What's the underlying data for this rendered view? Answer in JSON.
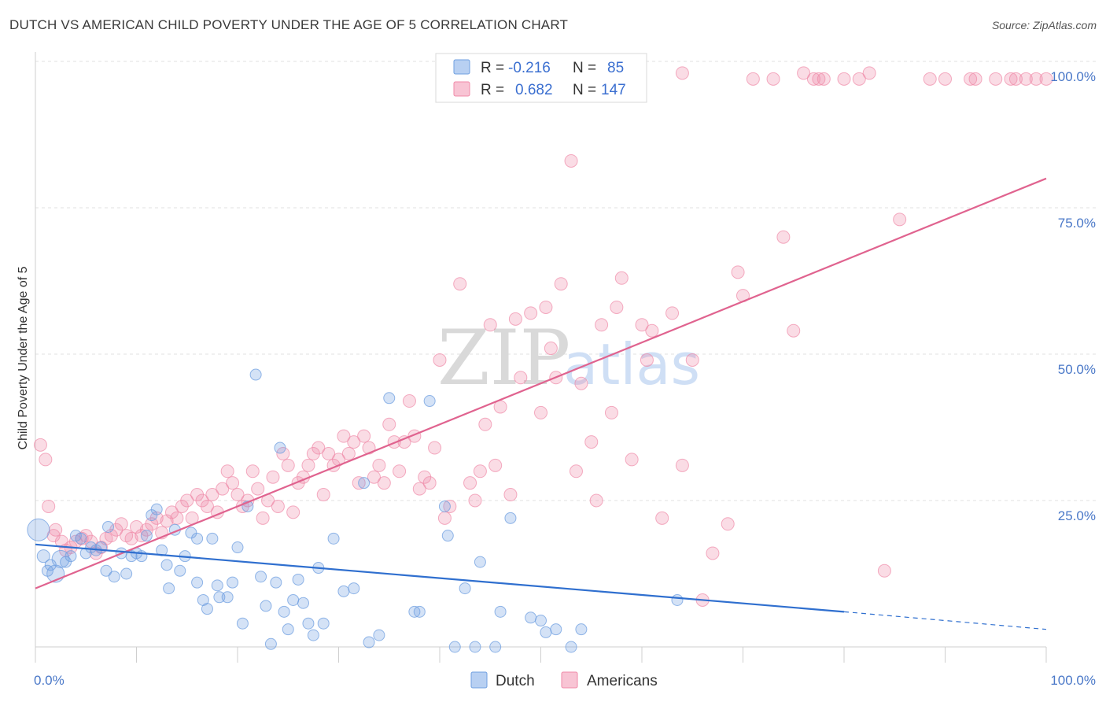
{
  "title": "DUTCH VS AMERICAN CHILD POVERTY UNDER THE AGE OF 5 CORRELATION CHART",
  "source": "Source: ZipAtlas.com",
  "watermark": {
    "zip": "ZIP",
    "atlas": "atlas"
  },
  "colors": {
    "dutch": "#6f9fe0",
    "americans": "#f08aa8",
    "dutch_line": "#2f6fcf",
    "americans_line": "#e0638f"
  },
  "legend_top": {
    "rows": [
      {
        "series": "Dutch",
        "r_label": "R =",
        "r_value": "-0.216",
        "n_label": "N =",
        "n_value": "85"
      },
      {
        "series": "Americans",
        "r_label": "R =",
        "r_value": "0.682",
        "n_label": "N =",
        "n_value": "147"
      }
    ]
  },
  "legend_bottom": [
    "Dutch",
    "Americans"
  ],
  "chart_data": {
    "type": "scatter",
    "ylabel": "Child Poverty Under the Age of 5",
    "xlim": [
      0,
      100
    ],
    "ylim": [
      0,
      100
    ],
    "x_tick_labels": [
      "0.0%",
      "100.0%"
    ],
    "y_tick_values": [
      25,
      50,
      75,
      100
    ],
    "y_tick_labels": [
      "25.0%",
      "50.0%",
      "75.0%",
      "100.0%"
    ],
    "grid": true,
    "legend_placement": "top-center",
    "series": [
      {
        "name": "Dutch",
        "trend": {
          "x0": 0,
          "y0": 17.5,
          "x1": 80,
          "y1": 6,
          "dashed_to_x": 100,
          "dashed_to_y": 3
        },
        "points": [
          [
            0.3,
            20
          ],
          [
            0.8,
            15.5
          ],
          [
            1.2,
            13
          ],
          [
            1.5,
            14
          ],
          [
            2.0,
            12.5
          ],
          [
            2.5,
            15
          ],
          [
            3.0,
            14.5
          ],
          [
            3.5,
            15.5
          ],
          [
            4.0,
            19
          ],
          [
            4.5,
            18.5
          ],
          [
            5.0,
            16
          ],
          [
            5.5,
            17
          ],
          [
            6.0,
            16.5
          ],
          [
            6.5,
            17
          ],
          [
            7.0,
            13
          ],
          [
            7.2,
            20.5
          ],
          [
            7.8,
            12
          ],
          [
            8.5,
            16
          ],
          [
            9.0,
            12.5
          ],
          [
            9.5,
            15.5
          ],
          [
            10.0,
            16
          ],
          [
            10.5,
            15.5
          ],
          [
            11.0,
            19
          ],
          [
            11.5,
            22.5
          ],
          [
            12.0,
            23.5
          ],
          [
            12.5,
            16.5
          ],
          [
            13.0,
            14
          ],
          [
            13.2,
            10
          ],
          [
            13.8,
            20
          ],
          [
            14.3,
            13
          ],
          [
            14.8,
            15.5
          ],
          [
            15.4,
            19.5
          ],
          [
            16.0,
            18.5
          ],
          [
            16.0,
            11
          ],
          [
            16.6,
            8
          ],
          [
            17.0,
            6.5
          ],
          [
            17.5,
            18.5
          ],
          [
            18.0,
            10.5
          ],
          [
            18.2,
            8.5
          ],
          [
            19.0,
            8.5
          ],
          [
            19.5,
            11
          ],
          [
            20.0,
            17
          ],
          [
            20.5,
            4
          ],
          [
            21.0,
            24
          ],
          [
            21.8,
            46.5
          ],
          [
            22.3,
            12
          ],
          [
            22.8,
            7
          ],
          [
            23.3,
            0.5
          ],
          [
            23.8,
            11
          ],
          [
            24.2,
            34
          ],
          [
            24.6,
            6
          ],
          [
            25.0,
            3
          ],
          [
            25.5,
            8
          ],
          [
            26.0,
            11.5
          ],
          [
            26.5,
            7.5
          ],
          [
            27.0,
            4
          ],
          [
            27.5,
            2
          ],
          [
            28.0,
            13.5
          ],
          [
            28.5,
            4
          ],
          [
            29.5,
            18.5
          ],
          [
            30.5,
            9.5
          ],
          [
            31.5,
            10
          ],
          [
            32.5,
            28
          ],
          [
            33.0,
            0.8
          ],
          [
            34.0,
            2
          ],
          [
            35.0,
            42.5
          ],
          [
            37.5,
            6
          ],
          [
            38.0,
            6
          ],
          [
            39.0,
            42
          ],
          [
            40.5,
            24
          ],
          [
            40.8,
            19
          ],
          [
            41.5,
            0
          ],
          [
            42.5,
            10
          ],
          [
            43.5,
            0
          ],
          [
            44.0,
            14.5
          ],
          [
            45.5,
            0
          ],
          [
            46.0,
            6
          ],
          [
            47.0,
            22
          ],
          [
            49.0,
            5
          ],
          [
            50.0,
            4.5
          ],
          [
            50.5,
            2.5
          ],
          [
            51.5,
            3
          ],
          [
            53.0,
            0
          ],
          [
            54.0,
            3
          ],
          [
            63.5,
            8
          ]
        ],
        "sizes": [
          28,
          16,
          14,
          14,
          22,
          22,
          14,
          14,
          14,
          14,
          14,
          14,
          14,
          14,
          14,
          14,
          14,
          14,
          14,
          14,
          14,
          14,
          14,
          14,
          14,
          14,
          14,
          14,
          14,
          14,
          14,
          14,
          14,
          14,
          14,
          14,
          14,
          14,
          14,
          14,
          14,
          14,
          14,
          14,
          14,
          14,
          14,
          14,
          14,
          14,
          14,
          14,
          14,
          14,
          14,
          14,
          14,
          14,
          14,
          14,
          14,
          14,
          14,
          14,
          14,
          14,
          14,
          14,
          14,
          14,
          14,
          14,
          14,
          14,
          14,
          14,
          14,
          14,
          14,
          14,
          14,
          14,
          14,
          14,
          14
        ]
      },
      {
        "name": "Americans",
        "trend": {
          "x0": 0,
          "y0": 10,
          "x1": 100,
          "y1": 80
        },
        "points": [
          [
            0.5,
            34.5
          ],
          [
            1.0,
            32
          ],
          [
            1.3,
            24
          ],
          [
            1.8,
            19
          ],
          [
            2.0,
            20
          ],
          [
            2.6,
            18
          ],
          [
            3.0,
            16.5
          ],
          [
            3.5,
            17
          ],
          [
            4.0,
            18
          ],
          [
            4.6,
            18.5
          ],
          [
            5.0,
            19
          ],
          [
            5.5,
            18
          ],
          [
            6.0,
            16
          ],
          [
            6.5,
            17
          ],
          [
            7.0,
            18.5
          ],
          [
            7.5,
            19
          ],
          [
            8.0,
            20
          ],
          [
            8.5,
            21
          ],
          [
            9.0,
            19
          ],
          [
            9.5,
            18.5
          ],
          [
            10.0,
            20.5
          ],
          [
            10.5,
            19
          ],
          [
            11.0,
            20
          ],
          [
            11.5,
            21
          ],
          [
            12.0,
            22
          ],
          [
            12.5,
            19.5
          ],
          [
            13.0,
            21.5
          ],
          [
            13.5,
            23
          ],
          [
            14.0,
            22
          ],
          [
            14.5,
            24
          ],
          [
            15.0,
            25
          ],
          [
            15.5,
            22
          ],
          [
            16.0,
            26
          ],
          [
            16.5,
            25
          ],
          [
            17.0,
            24
          ],
          [
            17.5,
            26
          ],
          [
            18.0,
            23
          ],
          [
            18.5,
            27
          ],
          [
            19.0,
            30
          ],
          [
            19.5,
            28
          ],
          [
            20.0,
            26
          ],
          [
            20.5,
            24
          ],
          [
            21.0,
            25
          ],
          [
            21.5,
            30
          ],
          [
            22.0,
            27
          ],
          [
            22.5,
            22
          ],
          [
            23.0,
            25
          ],
          [
            23.5,
            29
          ],
          [
            24.0,
            24
          ],
          [
            24.5,
            33
          ],
          [
            25.0,
            31
          ],
          [
            25.5,
            23
          ],
          [
            26.0,
            28
          ],
          [
            26.5,
            29
          ],
          [
            27.0,
            31
          ],
          [
            27.5,
            33
          ],
          [
            28.0,
            34
          ],
          [
            28.5,
            26
          ],
          [
            29.0,
            33
          ],
          [
            29.5,
            31
          ],
          [
            30.0,
            32
          ],
          [
            30.5,
            36
          ],
          [
            31.0,
            33
          ],
          [
            31.5,
            35
          ],
          [
            32.0,
            28
          ],
          [
            32.5,
            36
          ],
          [
            33.0,
            34
          ],
          [
            33.5,
            29
          ],
          [
            34.0,
            31
          ],
          [
            34.5,
            28
          ],
          [
            35.0,
            38
          ],
          [
            35.5,
            35
          ],
          [
            36.0,
            30
          ],
          [
            36.5,
            35
          ],
          [
            37.0,
            42
          ],
          [
            37.5,
            36
          ],
          [
            38.0,
            27
          ],
          [
            38.5,
            29
          ],
          [
            39.0,
            28
          ],
          [
            39.5,
            34
          ],
          [
            40.0,
            49
          ],
          [
            40.5,
            22
          ],
          [
            41.0,
            24
          ],
          [
            42.0,
            62
          ],
          [
            43.0,
            28
          ],
          [
            43.5,
            25
          ],
          [
            44.0,
            30
          ],
          [
            44.5,
            38
          ],
          [
            45.0,
            55
          ],
          [
            45.5,
            31
          ],
          [
            46.0,
            41
          ],
          [
            47.0,
            26
          ],
          [
            47.5,
            56
          ],
          [
            48.0,
            46
          ],
          [
            49.0,
            57
          ],
          [
            50.0,
            40
          ],
          [
            50.5,
            58
          ],
          [
            51.0,
            51
          ],
          [
            51.5,
            46
          ],
          [
            52.0,
            62
          ],
          [
            53.0,
            83
          ],
          [
            53.5,
            30
          ],
          [
            54.0,
            45
          ],
          [
            55.0,
            35
          ],
          [
            55.5,
            25
          ],
          [
            56.0,
            55
          ],
          [
            57.0,
            40
          ],
          [
            57.5,
            58
          ],
          [
            58.0,
            63
          ],
          [
            59.0,
            32
          ],
          [
            60.0,
            55
          ],
          [
            60.5,
            49
          ],
          [
            61.0,
            54
          ],
          [
            62.0,
            22
          ],
          [
            63.0,
            57
          ],
          [
            64.0,
            31
          ],
          [
            65.0,
            49
          ],
          [
            66.0,
            8
          ],
          [
            67.0,
            16
          ],
          [
            68.5,
            21
          ],
          [
            69.5,
            64
          ],
          [
            70.0,
            60
          ],
          [
            71.0,
            97
          ],
          [
            73.0,
            97
          ],
          [
            74.0,
            70
          ],
          [
            75.0,
            54
          ],
          [
            76.0,
            98
          ],
          [
            77.0,
            97
          ],
          [
            77.5,
            97
          ],
          [
            78.0,
            97
          ],
          [
            80.0,
            97
          ],
          [
            81.5,
            97
          ],
          [
            82.5,
            98
          ],
          [
            84.0,
            13
          ],
          [
            85.5,
            73
          ],
          [
            88.5,
            97
          ],
          [
            90.0,
            97
          ],
          [
            92.5,
            97
          ],
          [
            93.0,
            97
          ],
          [
            95.0,
            97
          ],
          [
            96.5,
            97
          ],
          [
            97.0,
            97
          ],
          [
            98.0,
            97
          ],
          [
            99.0,
            97
          ],
          [
            100.0,
            97
          ],
          [
            55.0,
            97
          ],
          [
            64.0,
            98
          ]
        ]
      }
    ]
  }
}
